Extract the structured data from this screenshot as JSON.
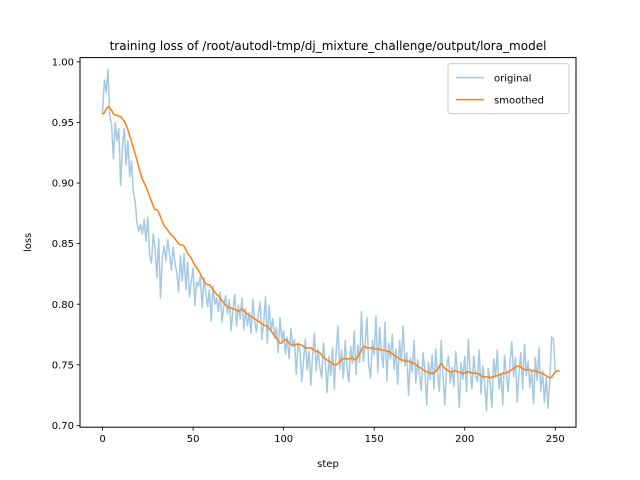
{
  "chart_data": {
    "type": "line",
    "title": "training loss of /root/autodl-tmp/dj_mixture_challenge/output/lora_model",
    "xlabel": "step",
    "ylabel": "loss",
    "xlim": [
      -12.45,
      261.45
    ],
    "ylim": [
      0.6985,
      1.0035
    ],
    "xticks": [
      0,
      50,
      100,
      150,
      200,
      250
    ],
    "yticks": [
      0.7,
      0.75,
      0.8,
      0.85,
      0.9,
      0.95,
      1.0
    ],
    "xtick_labels": [
      "0",
      "50",
      "100",
      "150",
      "200",
      "250"
    ],
    "ytick_labels": [
      "0.70",
      "0.75",
      "0.80",
      "0.85",
      "0.90",
      "0.95",
      "1.00"
    ],
    "grid": false,
    "legend_position": "upper right",
    "x_step": 1,
    "series": [
      {
        "name": "original",
        "color": "#1f77b4",
        "opacity": 0.4,
        "values": [
          0.958,
          0.985,
          0.975,
          0.994,
          0.955,
          0.948,
          0.92,
          0.95,
          0.935,
          0.945,
          0.898,
          0.93,
          0.945,
          0.915,
          0.935,
          0.905,
          0.918,
          0.892,
          0.885,
          0.867,
          0.86,
          0.866,
          0.858,
          0.87,
          0.852,
          0.872,
          0.84,
          0.834,
          0.858,
          0.846,
          0.822,
          0.854,
          0.805,
          0.838,
          0.848,
          0.836,
          0.853,
          0.842,
          0.828,
          0.847,
          0.834,
          0.826,
          0.81,
          0.84,
          0.819,
          0.842,
          0.812,
          0.835,
          0.806,
          0.819,
          0.83,
          0.799,
          0.818,
          0.815,
          0.823,
          0.797,
          0.822,
          0.81,
          0.798,
          0.812,
          0.786,
          0.815,
          0.8,
          0.805,
          0.794,
          0.81,
          0.785,
          0.799,
          0.807,
          0.792,
          0.804,
          0.778,
          0.795,
          0.808,
          0.782,
          0.799,
          0.788,
          0.805,
          0.779,
          0.796,
          0.782,
          0.793,
          0.776,
          0.804,
          0.786,
          0.777,
          0.792,
          0.802,
          0.771,
          0.785,
          0.806,
          0.768,
          0.799,
          0.778,
          0.788,
          0.772,
          0.781,
          0.76,
          0.789,
          0.77,
          0.778,
          0.759,
          0.773,
          0.755,
          0.78,
          0.765,
          0.771,
          0.742,
          0.768,
          0.762,
          0.736,
          0.754,
          0.771,
          0.746,
          0.761,
          0.733,
          0.758,
          0.776,
          0.745,
          0.763,
          0.748,
          0.739,
          0.768,
          0.752,
          0.727,
          0.757,
          0.741,
          0.764,
          0.73,
          0.761,
          0.782,
          0.746,
          0.762,
          0.739,
          0.77,
          0.748,
          0.736,
          0.765,
          0.751,
          0.778,
          0.742,
          0.766,
          0.752,
          0.794,
          0.753,
          0.766,
          0.789,
          0.75,
          0.739,
          0.77,
          0.758,
          0.79,
          0.744,
          0.781,
          0.76,
          0.748,
          0.785,
          0.737,
          0.768,
          0.755,
          0.775,
          0.746,
          0.763,
          0.734,
          0.77,
          0.752,
          0.782,
          0.749,
          0.76,
          0.725,
          0.756,
          0.744,
          0.77,
          0.735,
          0.754,
          0.742,
          0.729,
          0.76,
          0.745,
          0.717,
          0.752,
          0.738,
          0.758,
          0.73,
          0.763,
          0.742,
          0.728,
          0.77,
          0.741,
          0.717,
          0.749,
          0.757,
          0.735,
          0.748,
          0.732,
          0.761,
          0.744,
          0.715,
          0.752,
          0.738,
          0.757,
          0.728,
          0.771,
          0.745,
          0.73,
          0.757,
          0.741,
          0.736,
          0.762,
          0.726,
          0.749,
          0.735,
          0.712,
          0.747,
          0.736,
          0.715,
          0.755,
          0.74,
          0.762,
          0.73,
          0.743,
          0.717,
          0.758,
          0.742,
          0.728,
          0.752,
          0.769,
          0.74,
          0.756,
          0.719,
          0.744,
          0.76,
          0.73,
          0.767,
          0.741,
          0.753,
          0.731,
          0.745,
          0.718,
          0.756,
          0.737,
          0.764,
          0.728,
          0.745,
          0.719,
          0.74,
          0.714,
          0.738,
          0.773,
          0.771,
          0.745
        ]
      },
      {
        "name": "smoothed",
        "color": "#ff7f0e",
        "opacity": 1.0,
        "values": [
          0.957,
          0.958,
          0.961,
          0.963,
          0.962,
          0.96,
          0.957,
          0.956,
          0.956,
          0.955,
          0.955,
          0.953,
          0.951,
          0.948,
          0.944,
          0.939,
          0.934,
          0.929,
          0.924,
          0.919,
          0.913,
          0.908,
          0.903,
          0.9,
          0.897,
          0.893,
          0.889,
          0.885,
          0.881,
          0.878,
          0.878,
          0.876,
          0.872,
          0.868,
          0.865,
          0.863,
          0.861,
          0.859,
          0.857,
          0.856,
          0.854,
          0.852,
          0.85,
          0.849,
          0.849,
          0.848,
          0.845,
          0.842,
          0.84,
          0.838,
          0.835,
          0.832,
          0.83,
          0.828,
          0.825,
          0.822,
          0.819,
          0.817,
          0.816,
          0.816,
          0.814,
          0.812,
          0.81,
          0.808,
          0.807,
          0.805,
          0.803,
          0.801,
          0.799,
          0.798,
          0.797,
          0.797,
          0.796,
          0.796,
          0.795,
          0.794,
          0.795,
          0.796,
          0.795,
          0.793,
          0.792,
          0.791,
          0.79,
          0.789,
          0.788,
          0.787,
          0.786,
          0.785,
          0.784,
          0.783,
          0.782,
          0.782,
          0.78,
          0.778,
          0.776,
          0.774,
          0.772,
          0.77,
          0.768,
          0.768,
          0.77,
          0.771,
          0.77,
          0.768,
          0.767,
          0.766,
          0.766,
          0.767,
          0.767,
          0.767,
          0.766,
          0.765,
          0.764,
          0.764,
          0.764,
          0.764,
          0.763,
          0.762,
          0.761,
          0.761,
          0.76,
          0.758,
          0.756,
          0.755,
          0.754,
          0.753,
          0.752,
          0.751,
          0.75,
          0.75,
          0.751,
          0.753,
          0.754,
          0.755,
          0.755,
          0.755,
          0.755,
          0.755,
          0.756,
          0.754,
          0.755,
          0.757,
          0.759,
          0.762,
          0.765,
          0.765,
          0.764,
          0.764,
          0.764,
          0.764,
          0.763,
          0.763,
          0.763,
          0.763,
          0.762,
          0.762,
          0.762,
          0.761,
          0.761,
          0.76,
          0.759,
          0.758,
          0.757,
          0.756,
          0.755,
          0.754,
          0.754,
          0.753,
          0.753,
          0.753,
          0.752,
          0.752,
          0.751,
          0.75,
          0.749,
          0.748,
          0.747,
          0.746,
          0.745,
          0.744,
          0.744,
          0.743,
          0.743,
          0.743,
          0.745,
          0.746,
          0.749,
          0.751,
          0.749,
          0.747,
          0.746,
          0.745,
          0.744,
          0.744,
          0.745,
          0.745,
          0.744,
          0.744,
          0.743,
          0.743,
          0.743,
          0.744,
          0.744,
          0.744,
          0.743,
          0.743,
          0.743,
          0.743,
          0.742,
          0.741,
          0.74,
          0.74,
          0.74,
          0.74,
          0.739,
          0.74,
          0.74,
          0.741,
          0.741,
          0.742,
          0.742,
          0.743,
          0.743,
          0.743,
          0.744,
          0.745,
          0.746,
          0.747,
          0.748,
          0.749,
          0.749,
          0.748,
          0.747,
          0.746,
          0.746,
          0.746,
          0.746,
          0.745,
          0.745,
          0.745,
          0.744,
          0.744,
          0.743,
          0.743,
          0.742,
          0.741,
          0.74,
          0.739,
          0.74,
          0.742,
          0.744,
          0.745,
          0.745
        ]
      }
    ]
  }
}
